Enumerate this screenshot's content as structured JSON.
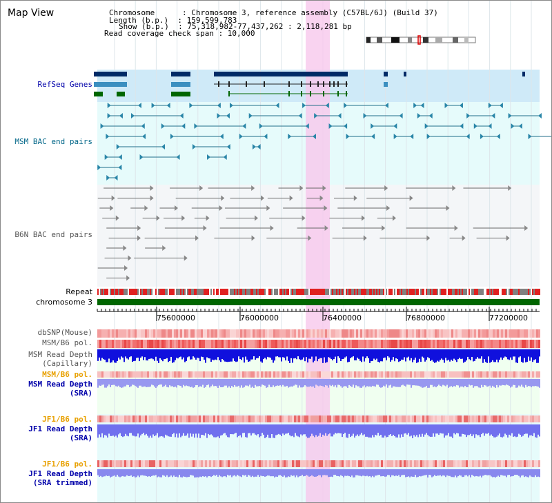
{
  "title": "Map View",
  "info": {
    "chromosome_label": "Chromosome      : Chromosome 3, reference assembly (C57BL/6J) (Build 37)",
    "length_label": "Length (b.p.)  : 159,599,783",
    "show_label": "Show (b.p.)  : 75,318,982-77,437,262 : 2,118,281 bp",
    "coverage_label": "Read coverage check span : 10,000"
  },
  "tracks": {
    "refseq": "RefSeq Genes",
    "msm_bac": "MSM BAC end pairs",
    "b6n_bac": "B6N BAC end pairs",
    "repeat": "Repeat",
    "chromosome": "chromosome 3",
    "dbsnp": "dbSNP(Mouse)",
    "msm_b6_pol_1": "MSM/B6 pol.",
    "msm_depth_cap_1": "MSM Read Depth",
    "msm_depth_cap_2": "(Capillary)",
    "msm_b6_pol_2": "MSM/B6 pol.",
    "msm_depth_sra_1": "MSM Read Depth",
    "msm_depth_sra_2": "(SRA)",
    "jf1_b6_pol_1": "JF1/B6 pol.",
    "jf1_depth_sra_1": "JF1 Read Depth",
    "jf1_depth_sra_2": "(SRA)",
    "jf1_b6_pol_2": "JF1/B6 pol.",
    "jf1_depth_trim_1": "JF1 Read Depth",
    "jf1_depth_trim_2": "(SRA trimmed)"
  },
  "axis": {
    "ticks": [
      "75600000",
      "76000000",
      "76400000",
      "76800000",
      "77200000"
    ]
  },
  "colors": {
    "label_blue": "#0000aa",
    "label_teal": "#006688",
    "label_gray": "#555555",
    "label_orange": "#e8a000",
    "highlight": "#f8c8ec",
    "refseq_bg": "#cfeaf8",
    "bac_bg": "#e6fbfb",
    "chromosome": "#006600",
    "gene_dark": "#002a66",
    "gene_mid": "#3b8fc0",
    "gene_green": "#006600"
  }
}
